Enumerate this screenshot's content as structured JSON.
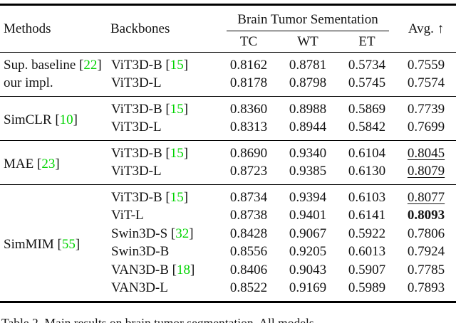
{
  "colors": {
    "citation_green": "#00d400",
    "rule_black": "#000000"
  },
  "header": {
    "methods": "Methods",
    "backbones": "Backbones",
    "group_title": "Brain Tumor Sementation",
    "sub_tc": "TC",
    "sub_wt": "WT",
    "sub_et": "ET",
    "avg": "Avg. ↑"
  },
  "sections": [
    {
      "rows": [
        {
          "method_pre": "Sup. baseline [",
          "method_cite": "22",
          "method_post": "]",
          "bb_pre": "ViT3D-B [",
          "bb_cite": "15",
          "bb_post": "]",
          "tc": "0.8162",
          "wt": "0.8781",
          "et": "0.5734",
          "avg": "0.7559"
        },
        {
          "method_pre": "our impl.",
          "method_cite": "",
          "method_post": "",
          "bb_pre": "ViT3D-L",
          "bb_cite": "",
          "bb_post": "",
          "tc": "0.8178",
          "wt": "0.8798",
          "et": "0.5745",
          "avg": "0.7574"
        }
      ]
    },
    {
      "method_pre": "SimCLR [",
      "method_cite": "10",
      "method_post": "]",
      "rows": [
        {
          "bb_pre": "ViT3D-B [",
          "bb_cite": "15",
          "bb_post": "]",
          "tc": "0.8360",
          "wt": "0.8988",
          "et": "0.5869",
          "avg": "0.7739"
        },
        {
          "bb_pre": "ViT3D-L",
          "bb_cite": "",
          "bb_post": "",
          "tc": "0.8313",
          "wt": "0.8944",
          "et": "0.5842",
          "avg": "0.7699"
        }
      ]
    },
    {
      "method_pre": "MAE [",
      "method_cite": "23",
      "method_post": "]",
      "rows": [
        {
          "bb_pre": "ViT3D-B [",
          "bb_cite": "15",
          "bb_post": "]",
          "tc": "0.8690",
          "wt": "0.9340",
          "et": "0.6104",
          "avg": "0.8045"
        },
        {
          "bb_pre": "ViT3D-L",
          "bb_cite": "",
          "bb_post": "",
          "tc": "0.8723",
          "wt": "0.9385",
          "et": "0.6130",
          "avg": "0.8079"
        }
      ]
    },
    {
      "method_pre": "SimMIM [",
      "method_cite": "55",
      "method_post": "]",
      "rows": [
        {
          "bb_pre": "ViT3D-B [",
          "bb_cite": "15",
          "bb_post": "]",
          "tc": "0.8734",
          "wt": "0.9394",
          "et": "0.6103",
          "avg": "0.8077"
        },
        {
          "bb_pre": "ViT-L",
          "bb_cite": "",
          "bb_post": "",
          "tc": "0.8738",
          "wt": "0.9401",
          "et": "0.6141",
          "avg": "0.8093"
        },
        {
          "bb_pre": "Swin3D-S [",
          "bb_cite": "32",
          "bb_post": "]",
          "tc": "0.8428",
          "wt": "0.9067",
          "et": "0.5922",
          "avg": "0.7806"
        },
        {
          "bb_pre": "Swin3D-B",
          "bb_cite": "",
          "bb_post": "",
          "tc": "0.8556",
          "wt": "0.9205",
          "et": "0.6013",
          "avg": "0.7924"
        },
        {
          "bb_pre": "VAN3D-B [",
          "bb_cite": "18",
          "bb_post": "]",
          "tc": "0.8406",
          "wt": "0.9043",
          "et": "0.5907",
          "avg": "0.7785"
        },
        {
          "bb_pre": "VAN3D-L",
          "bb_cite": "",
          "bb_post": "",
          "tc": "0.8522",
          "wt": "0.9169",
          "et": "0.5989",
          "avg": "0.7893"
        }
      ]
    }
  ],
  "caption": "Table 2. Main results on brain tumor segmentation. All models"
}
